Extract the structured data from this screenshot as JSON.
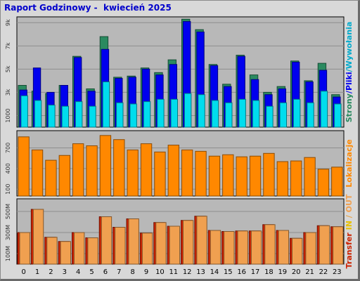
{
  "title": "Raport Godzinowy -  kwiecień 2025",
  "chart_data": [
    {
      "type": "bar",
      "panel": "hits",
      "categories": [
        "0",
        "1",
        "2",
        "3",
        "4",
        "5",
        "6",
        "7",
        "8",
        "9",
        "10",
        "11",
        "12",
        "13",
        "14",
        "15",
        "16",
        "17",
        "18",
        "19",
        "20",
        "21",
        "22",
        "23"
      ],
      "ylim": [
        0,
        9500
      ],
      "y_ticks": [
        {
          "value": 1000,
          "label": "1000"
        },
        {
          "value": 3000,
          "label": "3k"
        },
        {
          "value": 5000,
          "label": "5k"
        },
        {
          "value": 7000,
          "label": "7k"
        },
        {
          "value": 9000,
          "label": "9k"
        }
      ],
      "series": [
        {
          "name": "Strony",
          "color": "#2a8a60",
          "values": [
            3600,
            3100,
            2900,
            3600,
            6100,
            3300,
            7800,
            4300,
            4400,
            5100,
            4700,
            5800,
            9300,
            8400,
            5400,
            3700,
            6200,
            4500,
            3000,
            3500,
            5700,
            4000,
            5500,
            2800
          ]
        },
        {
          "name": "Pliki",
          "color": "#0000ee",
          "values": [
            3200,
            5100,
            3000,
            3600,
            6000,
            3100,
            6700,
            4200,
            4300,
            5000,
            4500,
            5400,
            9100,
            8200,
            5300,
            3500,
            6100,
            4100,
            2800,
            3300,
            5600,
            3900,
            4900,
            2600
          ]
        },
        {
          "name": "Wywołania",
          "color": "#00ddee",
          "values": [
            2700,
            2300,
            1900,
            1800,
            2200,
            1800,
            3900,
            2100,
            2000,
            2200,
            2400,
            2400,
            2900,
            2800,
            2300,
            2100,
            2400,
            2300,
            1800,
            2100,
            2400,
            2100,
            3100,
            2000
          ]
        }
      ],
      "right_label_parts": [
        {
          "text": "Strony",
          "color": "#2a8a60"
        },
        {
          "text": "/",
          "color": "#0000ee"
        },
        {
          "text": "Pliki",
          "color": "#0000ee"
        },
        {
          "text": "/",
          "color": "#00a0c0"
        },
        {
          "text": "Wywołania",
          "color": "#00aacc"
        }
      ]
    },
    {
      "type": "bar",
      "panel": "visits",
      "ylim": [
        0,
        950
      ],
      "y_ticks": [
        {
          "value": 100,
          "label": "100"
        },
        {
          "value": 400,
          "label": "400"
        },
        {
          "value": 700,
          "label": "700"
        }
      ],
      "series": [
        {
          "name": "Lokalizacje",
          "color": "#ff8800",
          "values": [
            860,
            670,
            520,
            590,
            760,
            730,
            880,
            820,
            670,
            760,
            640,
            740,
            670,
            650,
            580,
            600,
            570,
            580,
            620,
            500,
            510,
            560,
            390,
            420
          ]
        }
      ],
      "right_label_parts": [
        {
          "text": "Lokalizacje",
          "color": "#ff8800"
        }
      ]
    },
    {
      "type": "bar",
      "panel": "transfer",
      "ylim": [
        0,
        620
      ],
      "y_ticks": [
        {
          "value": 100,
          "label": "100M"
        },
        {
          "value": 300,
          "label": "300M"
        },
        {
          "value": 500,
          "label": "500M"
        }
      ],
      "series": [
        {
          "name": "Transfer",
          "color": "#cc2200",
          "values": [
            300,
            520,
            255,
            215,
            300,
            250,
            450,
            350,
            430,
            295,
            395,
            360,
            415,
            455,
            320,
            310,
            315,
            315,
            375,
            320,
            245,
            300,
            365,
            355
          ]
        },
        {
          "name": "Transfer",
          "color": "#f0a050",
          "values": [
            300,
            520,
            255,
            215,
            300,
            250,
            450,
            350,
            430,
            295,
            395,
            360,
            415,
            455,
            320,
            310,
            315,
            315,
            375,
            320,
            245,
            300,
            365,
            355
          ]
        }
      ],
      "right_label_parts": [
        {
          "text": "Transfer",
          "color": "#cc2200"
        },
        {
          "text": " ",
          "color": "#cc2200"
        },
        {
          "text": "IN",
          "color": "#e8c000"
        },
        {
          "text": " / ",
          "color": "#e8a040"
        },
        {
          "text": "OUT",
          "color": "#f0a050"
        }
      ]
    }
  ]
}
